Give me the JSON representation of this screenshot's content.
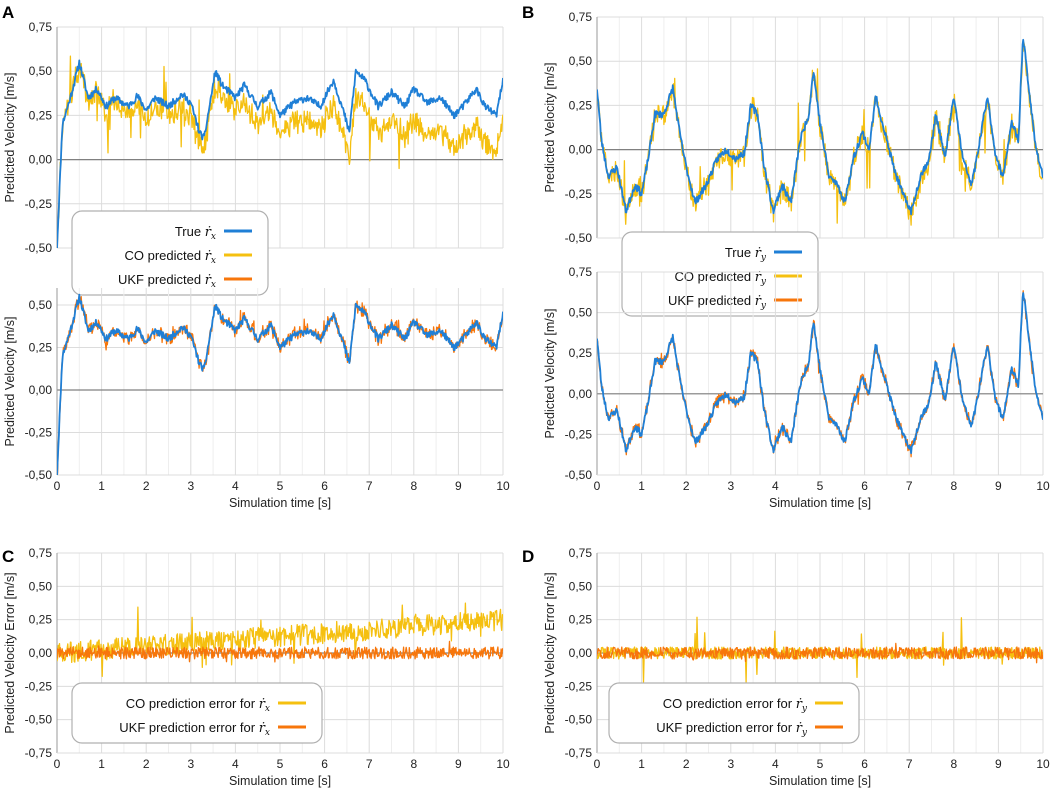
{
  "colors": {
    "true_blue": "#1f7fd6",
    "co_yellow": "#f5c010",
    "ukf_orange": "#f7760b",
    "grid": "#dcdcdc",
    "zero": "#808080",
    "frame": "#9a9a9a",
    "legend_border": "#b0b0b0"
  },
  "panel_labels": [
    "A",
    "B",
    "C",
    "D"
  ],
  "legend_symbol": "ṙ",
  "chart_data": [
    {
      "id": "A-top",
      "panel": "A",
      "type": "line",
      "ylabel": "Predicted Velocity [m/s]",
      "xlabel": "",
      "xlim": [
        0,
        10
      ],
      "ylim": [
        -0.5,
        0.75
      ],
      "xticks": [
        0,
        1,
        2,
        3,
        4,
        5,
        6,
        7,
        8,
        9,
        10
      ],
      "yticks": [
        "-0,50",
        "-0,25",
        "0,00",
        "0,25",
        "0,50",
        "0,75"
      ],
      "show_xtick_labels": false,
      "series": [
        {
          "name": "CO predicted",
          "signal": "x",
          "kind": "co",
          "color_key": "co_yellow"
        },
        {
          "name": "True",
          "signal": "x",
          "kind": "true",
          "color_key": "true_blue"
        }
      ],
      "legend": [
        {
          "label": "True ",
          "sub": "x",
          "color_key": "true_blue"
        },
        {
          "label": "CO predicted ",
          "sub": "x",
          "color_key": "co_yellow"
        },
        {
          "label": "UKF predicted ",
          "sub": "x",
          "color_key": "ukf_orange"
        }
      ]
    },
    {
      "id": "A-bottom",
      "panel": "",
      "type": "line",
      "ylabel": "Predicted Velocity [m/s]",
      "xlabel": "Simulation time [s]",
      "xlim": [
        0,
        10
      ],
      "ylim": [
        -0.5,
        0.6
      ],
      "xticks": [
        0,
        1,
        2,
        3,
        4,
        5,
        6,
        7,
        8,
        9,
        10
      ],
      "yticks": [
        "-0,50",
        "-0,25",
        "0,00",
        "0,25",
        "0,50"
      ],
      "show_xtick_labels": true,
      "series": [
        {
          "name": "UKF predicted",
          "signal": "x",
          "kind": "ukf",
          "color_key": "ukf_orange"
        },
        {
          "name": "True",
          "signal": "x",
          "kind": "true",
          "color_key": "true_blue"
        }
      ]
    },
    {
      "id": "B-top",
      "panel": "B",
      "type": "line",
      "ylabel": "Predicted Velocity [m/s]",
      "xlabel": "",
      "xlim": [
        0,
        10
      ],
      "ylim": [
        -0.5,
        0.75
      ],
      "xticks": [
        0,
        1,
        2,
        3,
        4,
        5,
        6,
        7,
        8,
        9,
        10
      ],
      "yticks": [
        "-0,50",
        "-0,25",
        "0,00",
        "0,25",
        "0,50",
        "0,75"
      ],
      "show_xtick_labels": false,
      "series": [
        {
          "name": "CO predicted",
          "signal": "y",
          "kind": "co",
          "color_key": "co_yellow"
        },
        {
          "name": "True",
          "signal": "y",
          "kind": "true",
          "color_key": "true_blue"
        }
      ],
      "legend": [
        {
          "label": "True ",
          "sub": "y",
          "color_key": "true_blue"
        },
        {
          "label": "CO predicted ",
          "sub": "y",
          "color_key": "co_yellow"
        },
        {
          "label": "UKF predicted ",
          "sub": "y",
          "color_key": "ukf_orange"
        }
      ]
    },
    {
      "id": "B-bottom",
      "panel": "",
      "type": "line",
      "ylabel": "Predicted Velocity [m/s]",
      "xlabel": "Simulation time [s]",
      "xlim": [
        0,
        10
      ],
      "ylim": [
        -0.5,
        0.75
      ],
      "xticks": [
        0,
        1,
        2,
        3,
        4,
        5,
        6,
        7,
        8,
        9,
        10
      ],
      "yticks": [
        "-0,50",
        "-0,25",
        "0,00",
        "0,25",
        "0,50",
        "0,75"
      ],
      "show_xtick_labels": true,
      "series": [
        {
          "name": "UKF predicted",
          "signal": "y",
          "kind": "ukf",
          "color_key": "ukf_orange"
        },
        {
          "name": "True",
          "signal": "y",
          "kind": "true",
          "color_key": "true_blue"
        }
      ]
    },
    {
      "id": "C",
      "panel": "C",
      "type": "line",
      "ylabel": "Predicted Velocity Error [m/s]",
      "xlabel": "Simulation time [s]",
      "xlim": [
        0,
        10
      ],
      "ylim": [
        -0.75,
        0.75
      ],
      "xticks": [
        0,
        1,
        2,
        3,
        4,
        5,
        6,
        7,
        8,
        9,
        10
      ],
      "yticks": [
        "-0,75",
        "-0,50",
        "-0,25",
        "0,00",
        "0,25",
        "0,50",
        "0,75"
      ],
      "show_xtick_labels": true,
      "series": [
        {
          "name": "CO prediction error",
          "signal": "x",
          "kind": "coerr",
          "color_key": "co_yellow"
        },
        {
          "name": "UKF prediction error",
          "signal": "x",
          "kind": "ukferr",
          "color_key": "ukf_orange"
        }
      ],
      "legend": [
        {
          "label": "CO prediction error for ",
          "sub": "x",
          "color_key": "co_yellow"
        },
        {
          "label": "UKF prediction error for ",
          "sub": "x",
          "color_key": "ukf_orange"
        }
      ]
    },
    {
      "id": "D",
      "panel": "D",
      "type": "line",
      "ylabel": "Predicted Velocity Error [m/s]",
      "xlabel": "Simulation time [s]",
      "xlim": [
        0,
        10
      ],
      "ylim": [
        -0.75,
        0.75
      ],
      "xticks": [
        0,
        1,
        2,
        3,
        4,
        5,
        6,
        7,
        8,
        9,
        10
      ],
      "yticks": [
        "-0,75",
        "-0,50",
        "-0,25",
        "0,00",
        "0,25",
        "0,50",
        "0,75"
      ],
      "show_xtick_labels": true,
      "series": [
        {
          "name": "CO prediction error",
          "signal": "y",
          "kind": "coerr",
          "color_key": "co_yellow"
        },
        {
          "name": "UKF prediction error",
          "signal": "y",
          "kind": "ukferr",
          "color_key": "ukf_orange"
        }
      ],
      "legend": [
        {
          "label": "CO prediction error for ",
          "sub": "y",
          "color_key": "co_yellow"
        },
        {
          "label": "UKF prediction error for ",
          "sub": "y",
          "color_key": "ukf_orange"
        }
      ]
    }
  ],
  "signal_shape": {
    "true_x": [
      [
        0,
        -0.5
      ],
      [
        0.12,
        0.2
      ],
      [
        0.3,
        0.35
      ],
      [
        0.5,
        0.55
      ],
      [
        0.7,
        0.35
      ],
      [
        0.9,
        0.4
      ],
      [
        1.1,
        0.3
      ],
      [
        1.3,
        0.35
      ],
      [
        1.6,
        0.3
      ],
      [
        1.8,
        0.36
      ],
      [
        2.0,
        0.28
      ],
      [
        2.2,
        0.35
      ],
      [
        2.5,
        0.3
      ],
      [
        2.8,
        0.37
      ],
      [
        3.0,
        0.32
      ],
      [
        3.2,
        0.15
      ],
      [
        3.3,
        0.12
      ],
      [
        3.55,
        0.5
      ],
      [
        3.7,
        0.42
      ],
      [
        4.0,
        0.35
      ],
      [
        4.2,
        0.42
      ],
      [
        4.5,
        0.3
      ],
      [
        4.8,
        0.38
      ],
      [
        5.0,
        0.25
      ],
      [
        5.3,
        0.32
      ],
      [
        5.6,
        0.35
      ],
      [
        5.9,
        0.3
      ],
      [
        6.2,
        0.45
      ],
      [
        6.45,
        0.25
      ],
      [
        6.55,
        0.15
      ],
      [
        6.7,
        0.5
      ],
      [
        6.9,
        0.45
      ],
      [
        7.2,
        0.3
      ],
      [
        7.5,
        0.38
      ],
      [
        7.8,
        0.3
      ],
      [
        8.0,
        0.4
      ],
      [
        8.3,
        0.32
      ],
      [
        8.6,
        0.35
      ],
      [
        8.9,
        0.25
      ],
      [
        9.1,
        0.3
      ],
      [
        9.4,
        0.4
      ],
      [
        9.6,
        0.3
      ],
      [
        9.85,
        0.25
      ],
      [
        10,
        0.45
      ]
    ],
    "true_y": [
      [
        0,
        0.35
      ],
      [
        0.1,
        0.05
      ],
      [
        0.25,
        -0.15
      ],
      [
        0.45,
        -0.1
      ],
      [
        0.65,
        -0.35
      ],
      [
        0.85,
        -0.2
      ],
      [
        1.0,
        -0.25
      ],
      [
        1.15,
        -0.05
      ],
      [
        1.3,
        0.2
      ],
      [
        1.5,
        0.2
      ],
      [
        1.7,
        0.35
      ],
      [
        1.85,
        0.1
      ],
      [
        2.0,
        -0.1
      ],
      [
        2.2,
        -0.3
      ],
      [
        2.45,
        -0.2
      ],
      [
        2.7,
        -0.05
      ],
      [
        2.9,
        0.0
      ],
      [
        3.1,
        -0.05
      ],
      [
        3.3,
        -0.02
      ],
      [
        3.45,
        0.25
      ],
      [
        3.6,
        0.2
      ],
      [
        3.75,
        -0.1
      ],
      [
        3.95,
        -0.35
      ],
      [
        4.15,
        -0.2
      ],
      [
        4.35,
        -0.3
      ],
      [
        4.55,
        0.05
      ],
      [
        4.75,
        0.2
      ],
      [
        4.85,
        0.45
      ],
      [
        5.0,
        0.15
      ],
      [
        5.2,
        -0.15
      ],
      [
        5.4,
        -0.2
      ],
      [
        5.55,
        -0.3
      ],
      [
        5.75,
        -0.05
      ],
      [
        5.95,
        0.1
      ],
      [
        6.1,
        0.0
      ],
      [
        6.25,
        0.3
      ],
      [
        6.45,
        0.1
      ],
      [
        6.65,
        -0.1
      ],
      [
        6.85,
        -0.25
      ],
      [
        7.05,
        -0.35
      ],
      [
        7.25,
        -0.15
      ],
      [
        7.45,
        -0.05
      ],
      [
        7.6,
        0.2
      ],
      [
        7.8,
        -0.05
      ],
      [
        8.0,
        0.3
      ],
      [
        8.2,
        -0.05
      ],
      [
        8.4,
        -0.2
      ],
      [
        8.55,
        0.0
      ],
      [
        8.75,
        0.3
      ],
      [
        8.95,
        -0.05
      ],
      [
        9.1,
        -0.15
      ],
      [
        9.3,
        0.15
      ],
      [
        9.45,
        0.05
      ],
      [
        9.55,
        0.65
      ],
      [
        9.7,
        0.3
      ],
      [
        9.85,
        0.0
      ],
      [
        10,
        -0.15
      ]
    ]
  }
}
